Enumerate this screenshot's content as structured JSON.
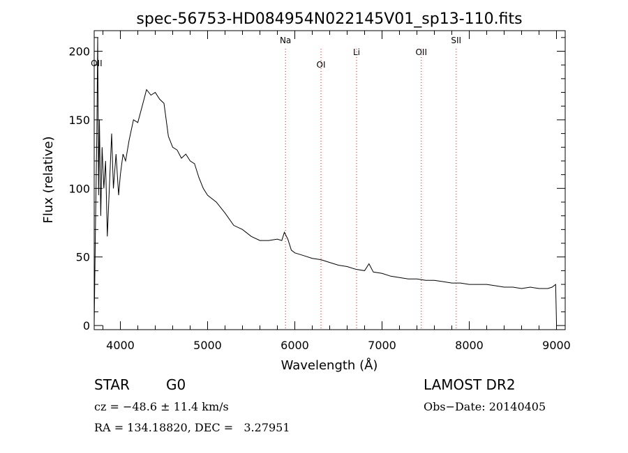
{
  "chart_data": {
    "type": "line",
    "title": "spec-56753-HD084954N022145V01_sp13-110.fits",
    "xlabel": "Wavelength (Å)",
    "ylabel": "Flux (relative)",
    "xlim": [
      3700,
      9100
    ],
    "ylim": [
      -3,
      215
    ],
    "x_ticks": [
      4000,
      5000,
      6000,
      7000,
      8000,
      9000
    ],
    "y_ticks": [
      0,
      50,
      100,
      150,
      200
    ],
    "grid": false,
    "line_color": "#000000",
    "marker_color": "#ff0000",
    "series": [
      {
        "x": [
          3700,
          3715,
          3730,
          3740,
          3750,
          3760,
          3775,
          3790,
          3810,
          3830,
          3850,
          3880,
          3900,
          3920,
          3950,
          3980,
          4000,
          4030,
          4060,
          4100,
          4150,
          4200,
          4250,
          4300,
          4350,
          4400,
          4450,
          4500,
          4550,
          4600,
          4650,
          4700,
          4750,
          4800,
          4850,
          4900,
          4950,
          5000,
          5100,
          5200,
          5300,
          5400,
          5500,
          5600,
          5700,
          5800,
          5850,
          5880,
          5920,
          5960,
          6000,
          6100,
          6200,
          6300,
          6400,
          6500,
          6600,
          6700,
          6800,
          6850,
          6900,
          7000,
          7100,
          7200,
          7300,
          7400,
          7500,
          7600,
          7700,
          7800,
          7900,
          8000,
          8100,
          8200,
          8300,
          8400,
          8500,
          8600,
          8700,
          8800,
          8900,
          8950,
          8990,
          9000
        ],
        "y": [
          1,
          75,
          140,
          210,
          95,
          150,
          80,
          130,
          100,
          120,
          65,
          110,
          140,
          100,
          125,
          95,
          110,
          125,
          120,
          135,
          150,
          148,
          160,
          172,
          168,
          170,
          165,
          162,
          138,
          130,
          128,
          122,
          125,
          120,
          118,
          108,
          100,
          95,
          90,
          82,
          73,
          70,
          65,
          62,
          62,
          63,
          62,
          68,
          63,
          55,
          53,
          51,
          49,
          48,
          46,
          44,
          43,
          41,
          40,
          45,
          39,
          38,
          36,
          35,
          34,
          34,
          33,
          33,
          32,
          31,
          31,
          30,
          30,
          30,
          29,
          28,
          28,
          27,
          28,
          27,
          27,
          28,
          30,
          2
        ]
      }
    ],
    "lines": [
      {
        "label": "OII",
        "x": 3727
      },
      {
        "label": "Na",
        "x": 5893
      },
      {
        "label": "OI",
        "x": 6300
      },
      {
        "label": "Li",
        "x": 6708
      },
      {
        "label": "OII",
        "x": 7450
      },
      {
        "label": "SII",
        "x": 7850
      }
    ]
  },
  "info": {
    "class": "STAR",
    "subclass": "G0",
    "survey": "LAMOST DR2",
    "cz": "cz = −48.6 ± 11.4 km/s",
    "obs_date": "Obs−Date: 20140405",
    "coords": "RA = 134.18820, DEC =   3.27951"
  }
}
